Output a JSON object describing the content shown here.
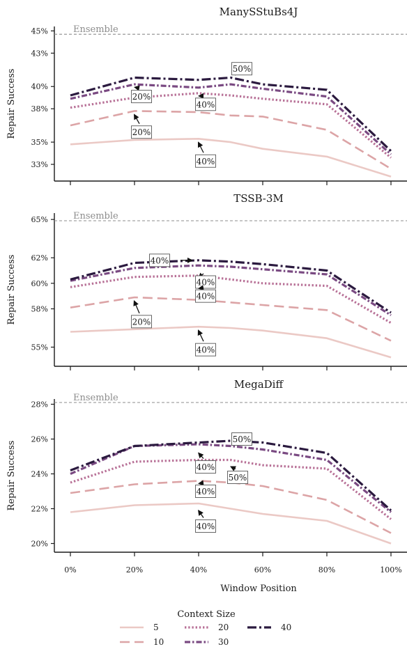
{
  "chart_data": [
    {
      "type": "line",
      "title": "ManySStuBs4J",
      "xlabel": "",
      "ylabel": "Repair Success",
      "categories": [
        "0%",
        "20%",
        "40%",
        "60%",
        "80%",
        "100%"
      ],
      "x": [
        0,
        20,
        40,
        50,
        60,
        80,
        100
      ],
      "ylim": [
        31.5,
        45.4
      ],
      "yticks": [
        33,
        35,
        38,
        40,
        43,
        45
      ],
      "ytick_labels": [
        "33%",
        "35%",
        "38%",
        "40%",
        "43%",
        "45%"
      ],
      "ensemble": {
        "label": "Ensemble",
        "value": 44.7
      },
      "series": [
        {
          "name": "5",
          "values": [
            34.8,
            35.2,
            35.3,
            35.0,
            34.4,
            33.7,
            31.9
          ]
        },
        {
          "name": "10",
          "values": [
            36.5,
            37.8,
            37.7,
            37.4,
            37.3,
            36.1,
            32.6
          ]
        },
        {
          "name": "20",
          "values": [
            38.1,
            39.0,
            39.4,
            39.2,
            38.9,
            38.4,
            33.6
          ]
        },
        {
          "name": "30",
          "values": [
            38.9,
            40.2,
            39.9,
            40.2,
            39.8,
            39.1,
            33.9
          ]
        },
        {
          "name": "40",
          "values": [
            39.2,
            40.8,
            40.6,
            40.8,
            40.2,
            39.7,
            34.2
          ]
        }
      ],
      "annotations": [
        {
          "text": "20%",
          "x": 20,
          "y": 39.1,
          "target_y": 40.2
        },
        {
          "text": "40%",
          "x": 40,
          "y": 38.4,
          "target_y": 39.4
        },
        {
          "text": "20%",
          "x": 20,
          "y": 35.9,
          "target_y": 37.8
        },
        {
          "text": "40%",
          "x": 40,
          "y": 33.3,
          "target_y": 35.3
        },
        {
          "text": "50%",
          "x": 50,
          "y": 41.6,
          "target_y": 40.8
        }
      ]
    },
    {
      "type": "line",
      "title": "TSSB-3M",
      "xlabel": "",
      "ylabel": "Repair Success",
      "categories": [
        "0%",
        "20%",
        "40%",
        "60%",
        "80%",
        "100%"
      ],
      "x": [
        0,
        20,
        40,
        50,
        60,
        80,
        100
      ],
      "ylim": [
        53.5,
        65.5
      ],
      "yticks": [
        55,
        58,
        60,
        62,
        65
      ],
      "ytick_labels": [
        "55%",
        "58%",
        "60%",
        "62%",
        "65%"
      ],
      "ensemble": {
        "label": "Ensemble",
        "value": 64.9
      },
      "series": [
        {
          "name": "5",
          "values": [
            56.2,
            56.4,
            56.6,
            56.5,
            56.3,
            55.7,
            54.2
          ]
        },
        {
          "name": "10",
          "values": [
            58.1,
            58.9,
            58.7,
            58.5,
            58.3,
            57.9,
            55.5
          ]
        },
        {
          "name": "20",
          "values": [
            59.7,
            60.5,
            60.6,
            60.3,
            60.0,
            59.8,
            56.9
          ]
        },
        {
          "name": "30",
          "values": [
            60.2,
            61.2,
            61.4,
            61.3,
            61.1,
            60.7,
            57.5
          ]
        },
        {
          "name": "40",
          "values": [
            60.3,
            61.6,
            61.8,
            61.7,
            61.5,
            61.0,
            57.7
          ]
        }
      ],
      "annotations": [
        {
          "text": "40%",
          "x": 40,
          "y": 60.1,
          "target_y": 60.6
        },
        {
          "text": "40%",
          "x": 40,
          "y": 59.0,
          "target_y": 59.8
        },
        {
          "text": "20%",
          "x": 20,
          "y": 57.0,
          "target_y": 58.9
        },
        {
          "text": "40%",
          "x": 40,
          "y": 54.8,
          "target_y": 56.6
        },
        {
          "text": "40%",
          "x": 40,
          "y": 61.8,
          "target_y": 61.8
        }
      ]
    },
    {
      "type": "line",
      "title": "MegaDiff",
      "xlabel": "Window Position",
      "ylabel": "Repair Success",
      "categories": [
        "0%",
        "20%",
        "40%",
        "60%",
        "80%",
        "100%"
      ],
      "x": [
        0,
        20,
        40,
        50,
        60,
        80,
        100
      ],
      "ylim": [
        19.5,
        28.3
      ],
      "yticks": [
        20,
        22,
        24,
        26,
        28
      ],
      "ytick_labels": [
        "20%",
        "22%",
        "24%",
        "26%",
        "28%"
      ],
      "ensemble": {
        "label": "Ensemble",
        "value": 28.1
      },
      "series": [
        {
          "name": "5",
          "values": [
            21.8,
            22.2,
            22.3,
            22.0,
            21.7,
            21.3,
            20.0
          ]
        },
        {
          "name": "10",
          "values": [
            22.9,
            23.4,
            23.6,
            23.5,
            23.3,
            22.5,
            20.6
          ]
        },
        {
          "name": "20",
          "values": [
            23.5,
            24.7,
            24.8,
            24.8,
            24.5,
            24.3,
            21.4
          ]
        },
        {
          "name": "30",
          "values": [
            24.0,
            25.6,
            25.7,
            25.6,
            25.4,
            24.8,
            21.8
          ]
        },
        {
          "name": "40",
          "values": [
            24.2,
            25.6,
            25.8,
            25.9,
            25.8,
            25.2,
            21.9
          ]
        }
      ],
      "annotations": [
        {
          "text": "40%",
          "x": 40,
          "y": 24.4,
          "target_y": 25.4
        },
        {
          "text": "50%",
          "x": 50,
          "y": 23.8,
          "target_y": 24.6
        },
        {
          "text": "40%",
          "x": 40,
          "y": 23.0,
          "target_y": 23.6
        },
        {
          "text": "40%",
          "x": 40,
          "y": 21.0,
          "target_y": 22.1
        },
        {
          "text": "50%",
          "x": 50,
          "y": 26.0,
          "target_y": 25.9
        }
      ]
    }
  ],
  "legend": {
    "title": "Context Size",
    "entries": [
      "5",
      "10",
      "20",
      "30",
      "40"
    ]
  },
  "colors": {
    "5": "#ebc9c5",
    "10": "#dca4a6",
    "20": "#b87197",
    "30": "#7a4a82",
    "40": "#2b1a3f",
    "ensemble": "#8c8c8c"
  }
}
